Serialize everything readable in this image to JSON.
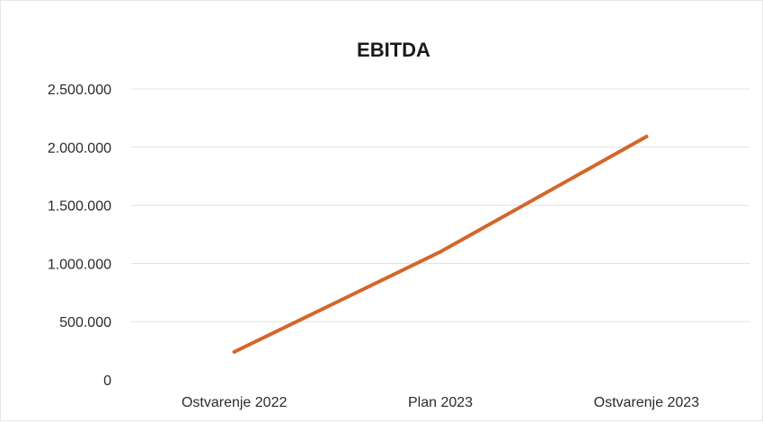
{
  "chart_data": {
    "type": "line",
    "title": "EBITDA",
    "xlabel": "",
    "ylabel": "",
    "categories": [
      "Ostvarenje 2022",
      "Plan 2023",
      "Ostvarenje 2023"
    ],
    "series": [
      {
        "values": [
          240000,
          1100000,
          2090000
        ],
        "color": "#d4662a"
      }
    ],
    "ylim": [
      0,
      2500000
    ],
    "yticks": [
      0,
      500000,
      1000000,
      1500000,
      2000000,
      2500000
    ],
    "ytick_labels": [
      "0",
      "500.000",
      "1.000.000",
      "1.500.000",
      "2.000.000",
      "2.500.000"
    ],
    "grid": true,
    "legend": "none"
  }
}
